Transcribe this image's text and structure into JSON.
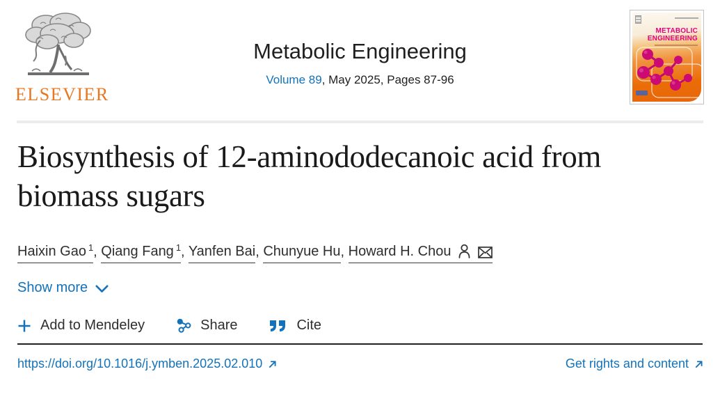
{
  "colors": {
    "accent_blue": "#1372b9",
    "elsevier_orange": "#e87722",
    "cover_magenta": "#e5007d",
    "text_dark": "#1a1a1a"
  },
  "header": {
    "publisher_name": "ELSEVIER",
    "journal_title": "Metabolic Engineering",
    "volume_link": "Volume 89",
    "issue_suffix": ", May 2025, Pages 87-96",
    "cover_title_line1": "METABOLIC",
    "cover_title_line2": "ENGINEERING"
  },
  "article": {
    "title": "Biosynthesis of 12-aminododecanoic acid from biomass sugars",
    "authors": [
      {
        "name": "Haixin Gao",
        "sup": "1",
        "sep": ", "
      },
      {
        "name": "Qiang Fang",
        "sup": "1",
        "sep": ", "
      },
      {
        "name": "Yanfen Bai",
        "sup": "",
        "sep": ", "
      },
      {
        "name": "Chunyue Hu",
        "sup": "",
        "sep": ", "
      },
      {
        "name": "Howard H. Chou",
        "sup": "",
        "sep": ""
      }
    ],
    "show_more_label": "Show more"
  },
  "actions": {
    "mendeley_label": "Add to Mendeley",
    "share_label": "Share",
    "cite_label": "Cite"
  },
  "footer": {
    "doi_url": "https://doi.org/10.1016/j.ymben.2025.02.010",
    "rights_label": "Get rights and content"
  }
}
